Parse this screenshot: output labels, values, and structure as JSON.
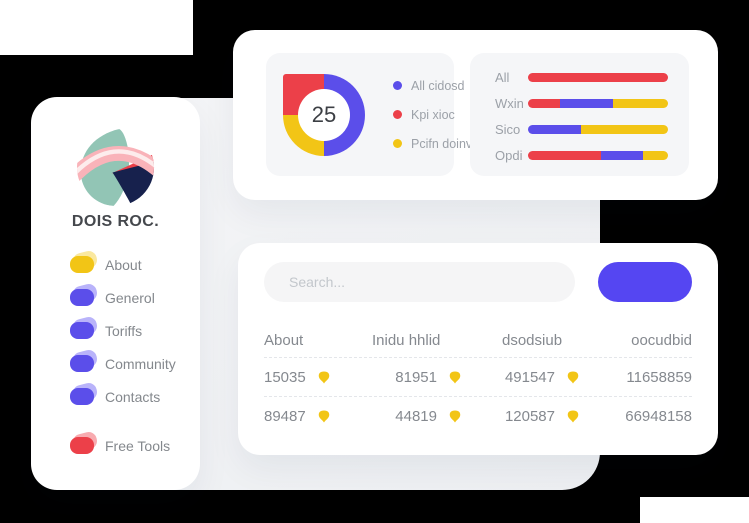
{
  "colors": {
    "accent_blue": "#5B4EEA",
    "button_blue": "#5546F2",
    "red": "#EC4049",
    "yellow": "#F2C516",
    "gray_panel": "#EFF0F3",
    "mini_card_bg": "#F5F6F8"
  },
  "logo": {
    "teal": "#92C5B5",
    "navy": "#17214D",
    "red": "#EC4049",
    "pink": "#F9B3B9",
    "stripe": "#FDECEC"
  },
  "sidebar": {
    "brand": "DOIS ROC.",
    "menu": [
      {
        "label": "About",
        "color": "#F2C516",
        "echo": "#F6D95F"
      },
      {
        "label": "Generol",
        "color": "#5B4EEA",
        "echo": "#8B80F7"
      },
      {
        "label": "Toriffs",
        "color": "#5B4EEA",
        "echo": "#8B80F7"
      },
      {
        "label": "Community",
        "color": "#5B4EEA",
        "echo": "#8B80F7"
      },
      {
        "label": "Contacts",
        "color": "#5B4EEA",
        "echo": "#8B80F7"
      }
    ],
    "footer_menu": [
      {
        "label": "Free Tools",
        "color": "#EC4049",
        "echo": "#F4737B"
      }
    ]
  },
  "table_card": {
    "search_placeholder": "Search...",
    "button_label": "",
    "headers": [
      "About",
      "Inidu hhlid",
      "dsodsiub",
      "oocudbid"
    ],
    "icon_columns": [
      0,
      1,
      2
    ],
    "rows": [
      [
        "15035",
        "81951",
        "491547",
        "11658859"
      ],
      [
        "89487",
        "44819",
        "120587",
        "66948158"
      ]
    ]
  },
  "chart_data": [
    {
      "type": "pie",
      "subtype": "donut",
      "center_label": "25",
      "legend_position": "right",
      "arc_sequence": [
        0,
        2,
        1
      ],
      "square_corner_segment": 1,
      "segments": [
        {
          "label": "All cidosd",
          "value": 50,
          "color": "#5B4EEA"
        },
        {
          "label": "Kpi xioc",
          "value": 25,
          "color": "#EC4049"
        },
        {
          "label": "Pcifn doinvi",
          "value": 25,
          "color": "#F2C516"
        }
      ]
    },
    {
      "type": "bar",
      "orientation": "horizontal",
      "stacked": true,
      "value_unit": "percent",
      "xlim": [
        0,
        100
      ],
      "categories": [
        "All",
        "Wxin",
        "Sico",
        "Opdi"
      ],
      "series": [
        {
          "name": "red",
          "color": "#EC4049",
          "values": [
            100,
            23,
            0,
            52
          ]
        },
        {
          "name": "blue",
          "color": "#5B4EEA",
          "values": [
            0,
            38,
            38,
            30
          ]
        },
        {
          "name": "yellow",
          "color": "#F2C516",
          "values": [
            0,
            39,
            62,
            18
          ]
        }
      ]
    }
  ]
}
